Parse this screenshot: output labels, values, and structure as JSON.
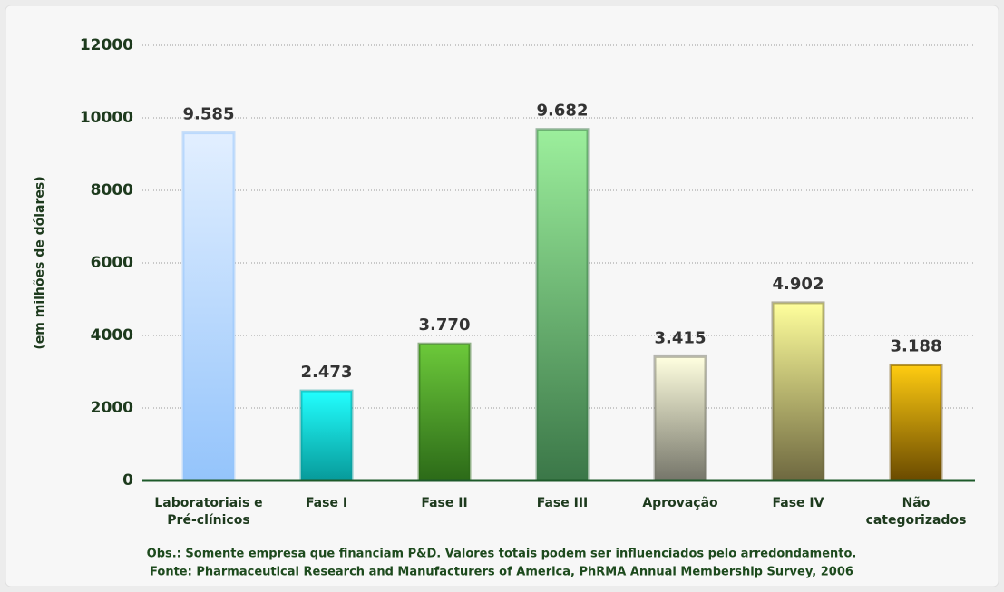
{
  "chart_data": {
    "type": "bar",
    "ylabel": "(em milhões de dólares)",
    "categories": [
      "Laboratoriais e Pré-clínicos",
      "Fase I",
      "Fase II",
      "Fase III",
      "Aprovação",
      "Fase IV",
      "Não categorizados"
    ],
    "values": [
      9585,
      2473,
      3770,
      9682,
      3415,
      4902,
      3188
    ],
    "value_labels": [
      "9.585",
      "2.473",
      "3.770",
      "9.682",
      "3.415",
      "4.902",
      "3.188"
    ],
    "colors": [
      [
        "#e2efff",
        "#94c4fb"
      ],
      [
        "#22ffff",
        "#079a9a"
      ],
      [
        "#6cc93a",
        "#2c6a18"
      ],
      [
        "#9cef9c",
        "#3b7748"
      ],
      [
        "#ffffe0",
        "#76766a"
      ],
      [
        "#ffff9c",
        "#6e6840"
      ],
      [
        "#ffcc11",
        "#6a4a00"
      ]
    ],
    "ylim": [
      0,
      12000
    ],
    "yticks": [
      0,
      2000,
      4000,
      6000,
      8000,
      10000,
      12000
    ],
    "grid": true,
    "notes": [
      "Obs.: Somente empresa que financiam P&D. Valores totais podem ser influenciados pelo arredondamento.",
      "Fonte: Pharmaceutical Research and Manufacturers of America, PhRMA Annual Membership Survey, 2006"
    ]
  }
}
